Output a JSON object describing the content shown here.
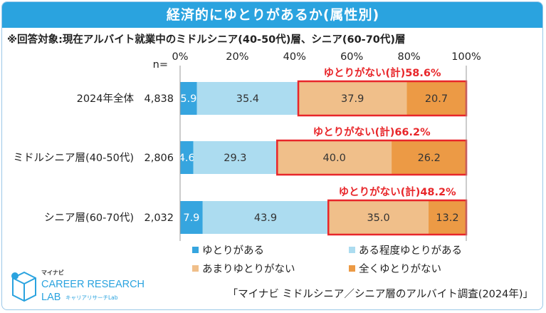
{
  "header": {
    "title": "経済的にゆとりがあるか(属性別)"
  },
  "note": "※回答対象:現在アルバイト就業中のミドルシニア(40-50代)層、シニア(60-70代)層",
  "source": "「マイナビ ミドルシニア／シニア層のアルバイト調査(2024年)」",
  "logo": {
    "brand_small": "マイナビ",
    "line1": "CAREER RESEARCH",
    "line2": "LAB",
    "sub": "キャリアリサーチLab"
  },
  "colors": {
    "accent": "#2aa3df",
    "highlight": "#e8262a"
  },
  "chart_data": {
    "type": "bar",
    "orientation": "horizontal-stacked-100",
    "title": "経済的にゆとりがあるか(属性別)",
    "n_label": "n=",
    "x_ticks": [
      "0%",
      "20%",
      "40%",
      "60%",
      "80%",
      "100%"
    ],
    "xlim": [
      0,
      100
    ],
    "categories": [
      "2024年全体",
      "ミドルシニア層(40-50代)",
      "シニア層(60-70代)"
    ],
    "n_values": [
      "4,838",
      "2,806",
      "2,032"
    ],
    "series": [
      {
        "name": "ゆとりがある",
        "color": "#36a5df",
        "values": [
          5.9,
          4.6,
          7.9
        ]
      },
      {
        "name": "ある程度ゆとりがある",
        "color": "#acdcf0",
        "values": [
          35.4,
          29.3,
          43.9
        ]
      },
      {
        "name": "あまりゆとりがない",
        "color": "#f0bf8a",
        "values": [
          37.9,
          40.0,
          35.0
        ]
      },
      {
        "name": "全くゆとりがない",
        "color": "#ec9a45",
        "values": [
          20.7,
          26.2,
          13.2
        ]
      }
    ],
    "value_labels": [
      [
        "5.9",
        "35.4",
        "37.9",
        "20.7"
      ],
      [
        "4.6",
        "29.3",
        "40.0",
        "26.2"
      ],
      [
        "7.9",
        "43.9",
        "35.0",
        "13.2"
      ]
    ],
    "annotations": [
      "ゆとりがない(計)58.6%",
      "ゆとりがない(計)66.2%",
      "ゆとりがない(計)48.2%"
    ],
    "legend": [
      "ゆとりがある",
      "ある程度ゆとりがある",
      "あまりゆとりがない",
      "全くゆとりがない"
    ]
  }
}
